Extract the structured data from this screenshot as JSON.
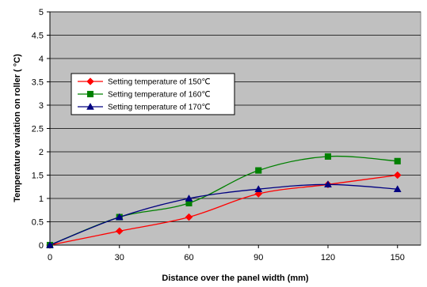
{
  "chart_data": {
    "type": "line",
    "x": [
      0,
      30,
      60,
      90,
      120,
      150
    ],
    "xticks": [
      "0",
      "30",
      "60",
      "90",
      "120",
      "150"
    ],
    "yticks": [
      "0",
      "0.5",
      "1",
      "1.5",
      "2",
      "2.5",
      "3",
      "3.5",
      "4",
      "4.5",
      "5"
    ],
    "xlabel": "Distance over the panel width (mm)",
    "ylabel": "Temperature variation on roller ( °C)",
    "xlim": [
      0,
      160
    ],
    "ylim": [
      0,
      5
    ],
    "grid": "horizontal",
    "plot_background": "#c0c0c0",
    "legend_position": "upper-left inside plot",
    "series": [
      {
        "name": "Setting temperature of 150℃",
        "values": [
          0,
          0.3,
          0.6,
          1.1,
          1.3,
          1.5
        ],
        "color": "#ff0000",
        "marker": "diamond"
      },
      {
        "name": "Setting temperature of 160℃",
        "values": [
          0,
          0.6,
          0.9,
          1.6,
          1.9,
          1.8
        ],
        "color": "#008000",
        "marker": "square"
      },
      {
        "name": "Setting temperature of 170℃",
        "values": [
          0,
          0.6,
          1.0,
          1.2,
          1.3,
          1.2
        ],
        "color": "#000080",
        "marker": "triangle"
      }
    ]
  }
}
